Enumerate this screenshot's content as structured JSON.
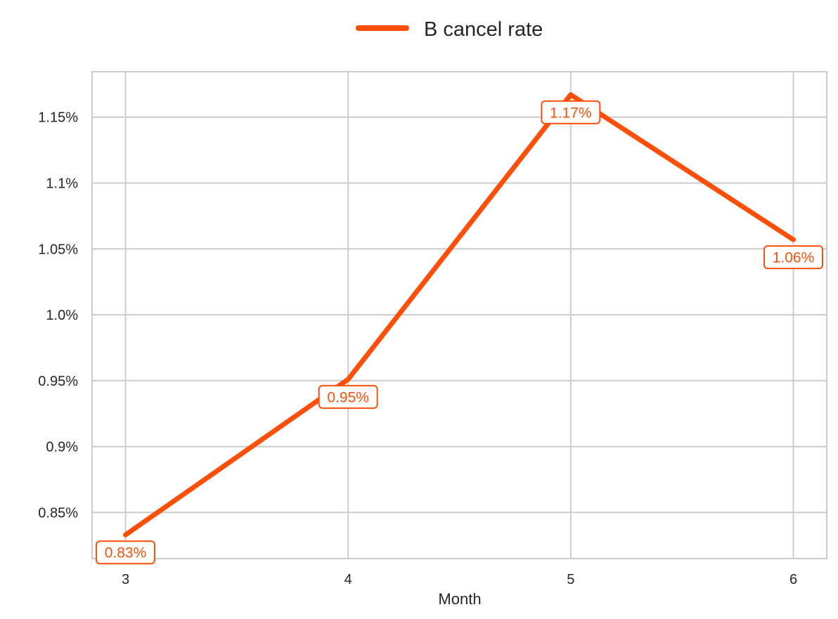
{
  "chart_data": {
    "type": "line",
    "xlabel": "Month",
    "ylabel": "",
    "x": [
      3,
      4,
      5,
      6
    ],
    "x_tick_labels": [
      "3",
      "4",
      "5",
      "6"
    ],
    "xlim": [
      2.85,
      6.15
    ],
    "ylim": [
      0.815,
      1.1845
    ],
    "y_ticks": [
      0.85,
      0.9,
      0.95,
      1.0,
      1.05,
      1.1,
      1.15
    ],
    "y_tick_labels": [
      "0.85%",
      "0.9%",
      "0.95%",
      "1.0%",
      "1.05%",
      "1.1%",
      "1.15%"
    ],
    "grid": true,
    "legend_position": "top-center",
    "series": [
      {
        "name": "B cancel rate",
        "color": "#fc4f0a",
        "values": [
          0.833,
          0.951,
          1.167,
          1.057
        ],
        "data_labels": [
          "0.83%",
          "0.95%",
          "1.17%",
          "1.06%"
        ]
      }
    ]
  }
}
